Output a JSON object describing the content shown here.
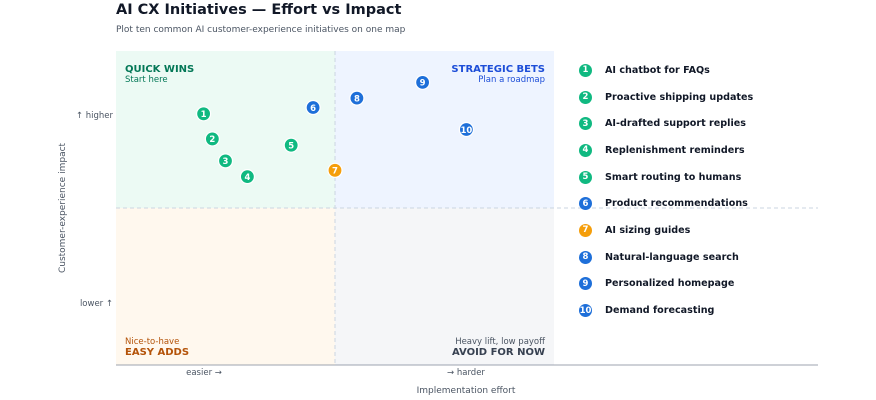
{
  "title": "AI CX Initiatives — Effort vs Impact",
  "subtitle": "Plot ten common AI customer-experience initiatives on one map",
  "colors": {
    "quick_wins": "#10b981",
    "strategic_bets": "#1e6fd9",
    "nice_to_have": "#f59e0b",
    "quick_wins_bg": "#ecfaf4",
    "strategic_bg": "#eef4ff",
    "nice_bg": "#fff8ee",
    "avoid_bg": "#f5f6f8"
  },
  "quadrants": {
    "top_left": {
      "title": "QUICK WINS",
      "subtitle": "Start here"
    },
    "top_right": {
      "title": "STRATEGIC BETS",
      "subtitle": "Plan a roadmap"
    },
    "bottom_left": {
      "title": "EASY ADDS",
      "subtitle": "Nice-to-have"
    },
    "bottom_right": {
      "title": "AVOID FOR NOW",
      "subtitle": "Heavy lift, low payoff"
    }
  },
  "chart_data": {
    "type": "scatter",
    "xlabel": "Implementation effort",
    "ylabel": "Customer-experience impact",
    "x_tick_labels": [
      "easier →",
      "→ harder"
    ],
    "y_tick_labels": [
      "↑ higher",
      "lower ↑"
    ],
    "xlim": [
      0,
      10
    ],
    "ylim": [
      0,
      10
    ],
    "grid": false,
    "legend_position": "right",
    "points": [
      {
        "id": 1,
        "label": "AI chatbot for FAQs",
        "x": 2.0,
        "y": 8.0,
        "group": "quick_wins"
      },
      {
        "id": 2,
        "label": "Proactive shipping updates",
        "x": 2.2,
        "y": 7.2,
        "group": "quick_wins"
      },
      {
        "id": 3,
        "label": "AI-drafted support replies",
        "x": 2.5,
        "y": 6.5,
        "group": "quick_wins"
      },
      {
        "id": 4,
        "label": "Replenishment reminders",
        "x": 3.0,
        "y": 6.0,
        "group": "quick_wins"
      },
      {
        "id": 5,
        "label": "Smart routing to humans",
        "x": 4.0,
        "y": 7.0,
        "group": "quick_wins"
      },
      {
        "id": 6,
        "label": "Product recommendations",
        "x": 4.5,
        "y": 8.2,
        "group": "strategic_bets"
      },
      {
        "id": 7,
        "label": "AI sizing guides",
        "x": 5.0,
        "y": 6.2,
        "group": "nice_to_have"
      },
      {
        "id": 8,
        "label": "Natural-language search",
        "x": 5.5,
        "y": 8.5,
        "group": "strategic_bets"
      },
      {
        "id": 9,
        "label": "Personalized homepage",
        "x": 7.0,
        "y": 9.0,
        "group": "strategic_bets"
      },
      {
        "id": 10,
        "label": "Demand forecasting",
        "x": 8.0,
        "y": 7.5,
        "group": "strategic_bets"
      }
    ]
  }
}
